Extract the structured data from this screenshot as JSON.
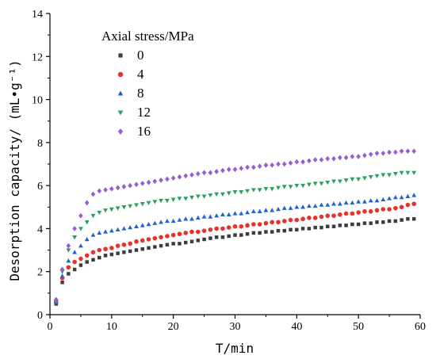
{
  "chart_data": {
    "type": "scatter",
    "xlabel": "T/min",
    "ylabel": "Desorption capacity/ (mL•g⁻¹)",
    "xlim": [
      0,
      60
    ],
    "ylim": [
      0,
      14
    ],
    "xticks": [
      "0",
      "10",
      "20",
      "30",
      "40",
      "50",
      "60"
    ],
    "yticks": [
      "0",
      "2",
      "4",
      "6",
      "8",
      "10",
      "12",
      "14"
    ],
    "grid": false,
    "legend_title": "Axial stress/MPa",
    "legend_position": "top-left",
    "x": [
      1,
      2,
      3,
      4,
      5,
      6,
      7,
      8,
      9,
      10,
      11,
      12,
      13,
      14,
      15,
      16,
      17,
      18,
      19,
      20,
      21,
      22,
      23,
      24,
      25,
      26,
      27,
      28,
      29,
      30,
      31,
      32,
      33,
      34,
      35,
      36,
      37,
      38,
      39,
      40,
      41,
      42,
      43,
      44,
      45,
      46,
      47,
      48,
      49,
      50,
      51,
      52,
      53,
      54,
      55,
      56,
      57,
      58,
      59
    ],
    "series": [
      {
        "name": "0",
        "marker": "square",
        "color": "#3d3d3d",
        "values": [
          0.5,
          1.5,
          1.9,
          2.1,
          2.3,
          2.45,
          2.55,
          2.65,
          2.75,
          2.8,
          2.85,
          2.9,
          2.95,
          3.0,
          3.05,
          3.1,
          3.15,
          3.2,
          3.25,
          3.3,
          3.3,
          3.35,
          3.4,
          3.45,
          3.5,
          3.55,
          3.6,
          3.6,
          3.65,
          3.7,
          3.7,
          3.75,
          3.8,
          3.8,
          3.85,
          3.85,
          3.9,
          3.9,
          3.95,
          3.95,
          4.0,
          4.0,
          4.05,
          4.05,
          4.1,
          4.1,
          4.15,
          4.15,
          4.2,
          4.2,
          4.25,
          4.25,
          4.3,
          4.3,
          4.35,
          4.35,
          4.4,
          4.45,
          4.45
        ]
      },
      {
        "name": "4",
        "marker": "circle",
        "color": "#e8312b",
        "values": [
          0.6,
          1.7,
          2.2,
          2.45,
          2.6,
          2.75,
          2.9,
          3.0,
          3.05,
          3.1,
          3.2,
          3.25,
          3.3,
          3.4,
          3.45,
          3.5,
          3.55,
          3.6,
          3.65,
          3.7,
          3.75,
          3.8,
          3.85,
          3.85,
          3.9,
          3.95,
          4.0,
          4.0,
          4.05,
          4.1,
          4.1,
          4.15,
          4.2,
          4.2,
          4.25,
          4.3,
          4.3,
          4.35,
          4.4,
          4.4,
          4.45,
          4.5,
          4.5,
          4.55,
          4.6,
          4.6,
          4.65,
          4.7,
          4.7,
          4.75,
          4.8,
          4.8,
          4.85,
          4.9,
          4.9,
          4.95,
          5.0,
          5.1,
          5.15
        ]
      },
      {
        "name": "8",
        "marker": "triangle-up",
        "color": "#2063d3",
        "values": [
          0.6,
          1.8,
          2.5,
          2.9,
          3.2,
          3.5,
          3.7,
          3.8,
          3.85,
          3.9,
          3.95,
          4.0,
          4.05,
          4.1,
          4.15,
          4.2,
          4.25,
          4.3,
          4.35,
          4.35,
          4.4,
          4.45,
          4.45,
          4.5,
          4.55,
          4.55,
          4.6,
          4.65,
          4.65,
          4.7,
          4.7,
          4.75,
          4.8,
          4.8,
          4.85,
          4.85,
          4.9,
          4.95,
          4.95,
          5.0,
          5.0,
          5.05,
          5.05,
          5.1,
          5.1,
          5.15,
          5.15,
          5.2,
          5.2,
          5.25,
          5.25,
          5.3,
          5.3,
          5.35,
          5.4,
          5.45,
          5.45,
          5.5,
          5.55
        ]
      },
      {
        "name": "12",
        "marker": "triangle-down",
        "color": "#29a061",
        "values": [
          0.6,
          2.0,
          3.0,
          3.6,
          4.0,
          4.3,
          4.6,
          4.75,
          4.85,
          4.9,
          4.95,
          5.0,
          5.05,
          5.1,
          5.15,
          5.2,
          5.25,
          5.3,
          5.3,
          5.35,
          5.4,
          5.4,
          5.45,
          5.5,
          5.5,
          5.55,
          5.6,
          5.6,
          5.65,
          5.7,
          5.7,
          5.75,
          5.8,
          5.8,
          5.85,
          5.85,
          5.9,
          5.95,
          5.95,
          6.0,
          6.0,
          6.05,
          6.1,
          6.1,
          6.15,
          6.2,
          6.2,
          6.25,
          6.3,
          6.3,
          6.35,
          6.4,
          6.45,
          6.5,
          6.5,
          6.55,
          6.6,
          6.6,
          6.6
        ]
      },
      {
        "name": "16",
        "marker": "diamond",
        "color": "#9a59d6",
        "values": [
          0.7,
          2.1,
          3.2,
          4.0,
          4.6,
          5.2,
          5.6,
          5.75,
          5.8,
          5.85,
          5.9,
          5.95,
          6.0,
          6.05,
          6.1,
          6.15,
          6.2,
          6.25,
          6.3,
          6.35,
          6.4,
          6.45,
          6.5,
          6.55,
          6.6,
          6.6,
          6.65,
          6.7,
          6.75,
          6.75,
          6.8,
          6.85,
          6.85,
          6.9,
          6.95,
          6.95,
          7.0,
          7.0,
          7.05,
          7.1,
          7.1,
          7.15,
          7.2,
          7.2,
          7.25,
          7.25,
          7.3,
          7.3,
          7.35,
          7.35,
          7.4,
          7.45,
          7.5,
          7.5,
          7.55,
          7.55,
          7.6,
          7.6,
          7.6
        ]
      }
    ]
  }
}
